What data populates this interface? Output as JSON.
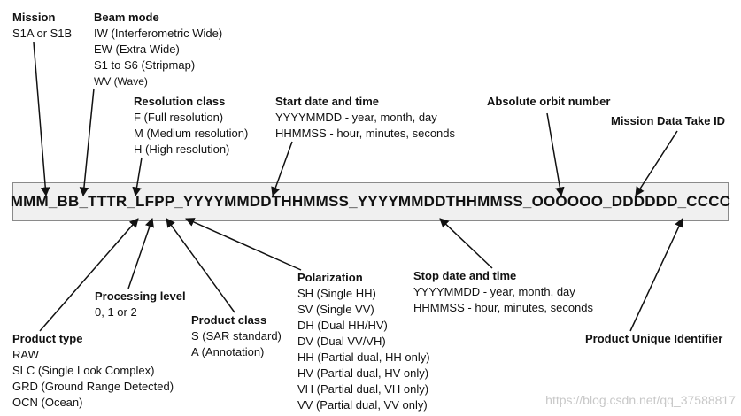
{
  "mission": {
    "title": "Mission",
    "lines": [
      "S1A or S1B"
    ]
  },
  "beam_mode": {
    "title": "Beam mode",
    "lines": [
      "IW (Interferometric Wide)",
      "EW (Extra Wide)",
      "S1 to S6 (Stripmap)",
      "WV (Wave)"
    ]
  },
  "resolution_class": {
    "title": "Resolution class",
    "lines": [
      "F (Full resolution)",
      "M (Medium resolution)",
      "H (High resolution)"
    ]
  },
  "start_date": {
    "title": "Start date and time",
    "lines": [
      "YYYYMMDD - year, month, day",
      "HHMMSS - hour, minutes, seconds"
    ]
  },
  "absolute_orbit": {
    "title": "Absolute orbit number",
    "lines": []
  },
  "mission_take_id": {
    "title": "Mission Data Take ID",
    "lines": []
  },
  "filename": "MMM_BB_TTTR_LFPP_YYYYMMDDTHHMMSS_YYYYMMDDTHHMMSS_OOOOOO_DDDDDD_CCCC",
  "processing_level": {
    "title": "Processing level",
    "lines": [
      "0, 1 or 2"
    ]
  },
  "product_class": {
    "title": "Product class",
    "lines": [
      "S (SAR standard)",
      "A (Annotation)"
    ]
  },
  "product_type": {
    "title": "Product type",
    "lines": [
      "RAW",
      "SLC (Single Look Complex)",
      "GRD (Ground Range Detected)",
      "OCN (Ocean)"
    ]
  },
  "polarization": {
    "title": "Polarization",
    "lines": [
      "SH (Single HH)",
      "SV (Single VV)",
      "DH (Dual HH/HV)",
      "DV (Dual VV/VH)",
      "HH (Partial dual, HH only)",
      "HV (Partial dual, HV only)",
      "VH (Partial dual, VH only)",
      "VV (Partial dual, VV only)"
    ]
  },
  "stop_date": {
    "title": "Stop date and time",
    "lines": [
      "YYYYMMDD - year, month, day",
      "HHMMSS - hour, minutes, seconds"
    ]
  },
  "unique_id": {
    "title": "Product Unique Identifier",
    "lines": []
  },
  "watermark": "https://blog.csdn.net/qq_37588817"
}
